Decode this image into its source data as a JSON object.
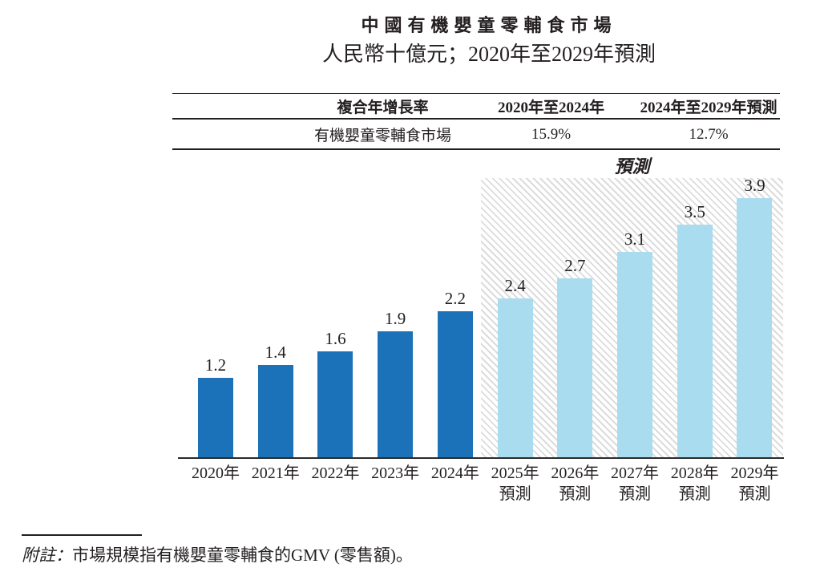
{
  "page": {
    "title": "中國有機嬰童零輔食市場",
    "subtitle": "人民幣十億元；2020年至2029年預測"
  },
  "cagr_table": {
    "headers": [
      "複合年增長率",
      "2020年至2024年",
      "2024年至2029年預測"
    ],
    "rows": [
      {
        "label": "有機嬰童零輔食市場",
        "cagr_2020_2024": "15.9%",
        "cagr_2024_2029": "12.7%"
      }
    ]
  },
  "chart_data": {
    "type": "bar",
    "title": "中國有機嬰童零輔食市場",
    "units_label": "人民幣十億元",
    "categories": [
      "2020年",
      "2021年",
      "2022年",
      "2023年",
      "2024年",
      "2025年預測",
      "2026年預測",
      "2027年預測",
      "2028年預測",
      "2029年預測"
    ],
    "values": [
      1.2,
      1.4,
      1.6,
      1.9,
      2.2,
      2.4,
      2.7,
      3.1,
      3.5,
      3.9
    ],
    "value_labels": [
      "1.2",
      "1.4",
      "1.6",
      "1.9",
      "2.2",
      "2.4",
      "2.7",
      "3.1",
      "3.5",
      "3.9"
    ],
    "forecast_start_index": 5,
    "forecast_label": "預測",
    "forecast_axis_sublabel": "預測",
    "actual_bar_color": "#1B72B8",
    "forecast_bar_color": "#A9DCEE",
    "hatch_line_color": "#DCDCDC",
    "axis_color": "#2B2B2B",
    "ylim": [
      0,
      4.2
    ],
    "gridlines": false,
    "legend": "none",
    "value_labels_shown": true
  },
  "footnote": {
    "label": "附註：",
    "text": "市場規模指有機嬰童零輔食的GMV (零售額)。"
  }
}
